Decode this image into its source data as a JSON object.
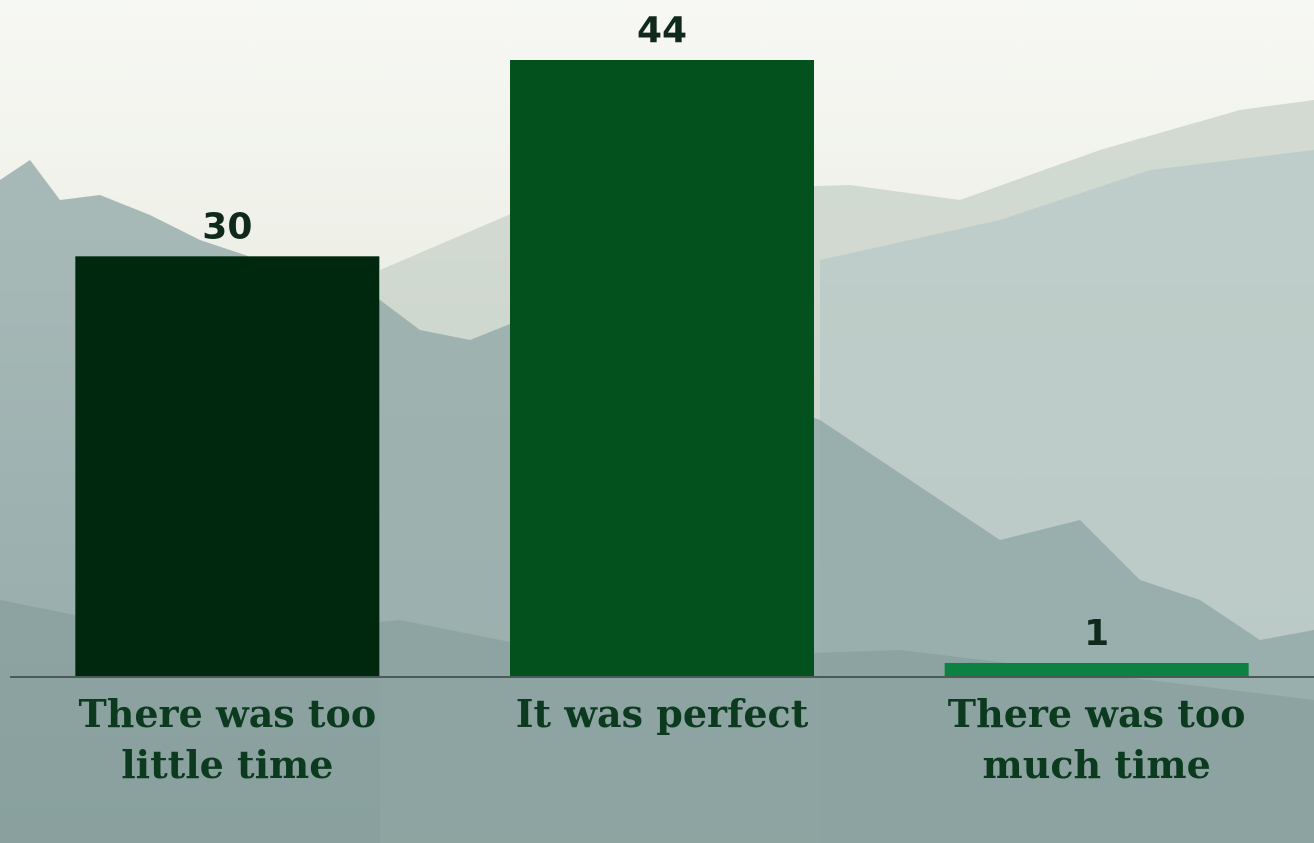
{
  "chart_data": {
    "type": "bar",
    "categories": [
      "There was too little time",
      "It was perfect",
      "There was too much time"
    ],
    "values": [
      30,
      44,
      1
    ],
    "colors": [
      "#00280f",
      "#03521d",
      "#0b8142"
    ]
  }
}
